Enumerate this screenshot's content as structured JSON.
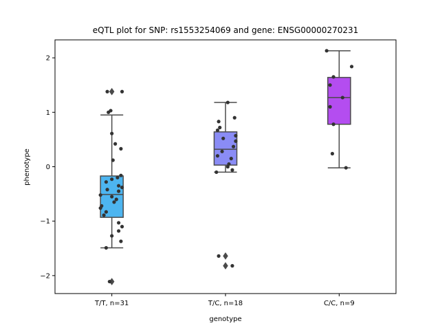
{
  "chart_data": {
    "type": "box",
    "title": "eQTL plot for SNP: rs1553254069 and gene: ENSG00000270231",
    "xlabel": "genotype",
    "ylabel": "phenotype",
    "ylim": [
      -2.33,
      2.33
    ],
    "yticks": [
      -2,
      -1,
      0,
      1,
      2
    ],
    "categories": [
      "T/T, n=31",
      "T/C, n=18",
      "C/C, n=9"
    ],
    "colors": [
      "#4db5f0",
      "#8a8cf5",
      "#b44df0"
    ],
    "boxes": [
      {
        "q1": -0.93,
        "median": -0.51,
        "q3": -0.17,
        "whisker_low": -1.49,
        "whisker_high": 0.95,
        "outliers": [
          1.38,
          -2.11
        ]
      },
      {
        "q1": 0.03,
        "median": 0.32,
        "q3": 0.64,
        "whisker_low": -0.1,
        "whisker_high": 1.18,
        "outliers": [
          -1.64,
          -1.82
        ]
      },
      {
        "q1": 0.78,
        "median": 1.27,
        "q3": 1.64,
        "whisker_low": -0.02,
        "whisker_high": 2.13,
        "outliers": []
      }
    ],
    "points": [
      [
        {
          "dx": -0.04,
          "y": 1.38
        },
        {
          "dx": 0.09,
          "y": 1.38
        },
        {
          "dx": -0.01,
          "y": 1.03
        },
        {
          "dx": -0.03,
          "y": 1.0
        },
        {
          "dx": 0.0,
          "y": 0.61
        },
        {
          "dx": 0.03,
          "y": 0.42
        },
        {
          "dx": 0.08,
          "y": 0.33
        },
        {
          "dx": 0.01,
          "y": 0.12
        },
        {
          "dx": 0.08,
          "y": -0.16
        },
        {
          "dx": 0.05,
          "y": -0.2
        },
        {
          "dx": 0.0,
          "y": -0.23
        },
        {
          "dx": -0.05,
          "y": -0.28
        },
        {
          "dx": 0.06,
          "y": -0.35
        },
        {
          "dx": 0.09,
          "y": -0.38
        },
        {
          "dx": -0.04,
          "y": -0.42
        },
        {
          "dx": 0.06,
          "y": -0.45
        },
        {
          "dx": -0.1,
          "y": -0.52
        },
        {
          "dx": 0.0,
          "y": -0.55
        },
        {
          "dx": 0.04,
          "y": -0.6
        },
        {
          "dx": 0.02,
          "y": -0.65
        },
        {
          "dx": -0.09,
          "y": -0.72
        },
        {
          "dx": -0.1,
          "y": -0.76
        },
        {
          "dx": -0.05,
          "y": -0.83
        },
        {
          "dx": -0.07,
          "y": -0.89
        },
        {
          "dx": 0.06,
          "y": -1.03
        },
        {
          "dx": 0.09,
          "y": -1.1
        },
        {
          "dx": 0.06,
          "y": -1.18
        },
        {
          "dx": 0.0,
          "y": -1.27
        },
        {
          "dx": 0.08,
          "y": -1.37
        },
        {
          "dx": -0.05,
          "y": -1.49
        },
        {
          "dx": -0.02,
          "y": -2.11
        }
      ],
      [
        {
          "dx": 0.02,
          "y": 1.18
        },
        {
          "dx": 0.08,
          "y": 0.9
        },
        {
          "dx": -0.06,
          "y": 0.83
        },
        {
          "dx": -0.05,
          "y": 0.72
        },
        {
          "dx": -0.07,
          "y": 0.67
        },
        {
          "dx": 0.09,
          "y": 0.57
        },
        {
          "dx": -0.02,
          "y": 0.52
        },
        {
          "dx": 0.09,
          "y": 0.47
        },
        {
          "dx": 0.07,
          "y": 0.37
        },
        {
          "dx": -0.03,
          "y": 0.28
        },
        {
          "dx": -0.07,
          "y": 0.2
        },
        {
          "dx": 0.05,
          "y": 0.15
        },
        {
          "dx": 0.03,
          "y": 0.05
        },
        {
          "dx": 0.02,
          "y": 0.0
        },
        {
          "dx": 0.06,
          "y": -0.06
        },
        {
          "dx": -0.08,
          "y": -0.1
        },
        {
          "dx": -0.06,
          "y": -1.64
        },
        {
          "dx": 0.06,
          "y": -1.82
        }
      ],
      [
        {
          "dx": -0.11,
          "y": 2.13
        },
        {
          "dx": 0.11,
          "y": 1.84
        },
        {
          "dx": -0.05,
          "y": 1.65
        },
        {
          "dx": -0.08,
          "y": 1.5
        },
        {
          "dx": 0.03,
          "y": 1.27
        },
        {
          "dx": -0.08,
          "y": 1.1
        },
        {
          "dx": -0.05,
          "y": 0.78
        },
        {
          "dx": -0.06,
          "y": 0.24
        },
        {
          "dx": 0.06,
          "y": -0.02
        }
      ]
    ]
  }
}
